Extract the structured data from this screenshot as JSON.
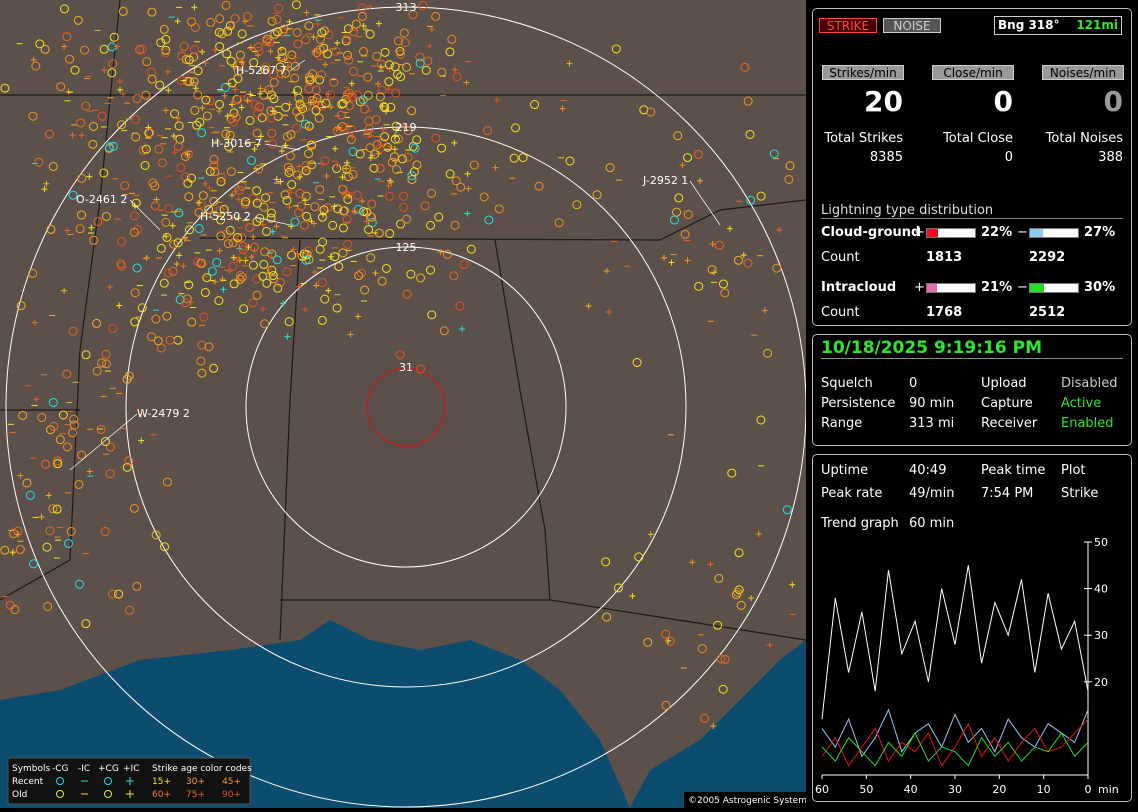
{
  "map": {
    "range_rings": [
      "313",
      "219",
      "125",
      "31"
    ],
    "storms": [
      "H-5267 7",
      "H-3016 7",
      "H-5250 2",
      "O-2461 2",
      "J-2952 1",
      "W-2479 2"
    ],
    "legend": {
      "header": [
        "Symbols",
        "-CG",
        "-IC",
        "+CG",
        "+IC",
        "Strike age color codes"
      ],
      "rows": [
        "Recent",
        "Old"
      ],
      "recent_ages": [
        "15+",
        "30+",
        "45+"
      ],
      "old_ages": [
        "60+",
        "75+",
        "90+"
      ]
    },
    "copyright": "©2005 Astrogenic Systems"
  },
  "panel": {
    "buttons": [
      "STRIKE",
      "NOISE"
    ],
    "bearing": "Bng 318°",
    "bearing_distance": "121mi",
    "rate_labels": [
      "Strikes/min",
      "Close/min",
      "Noises/min"
    ],
    "rates": [
      20,
      0,
      0
    ],
    "total_labels": [
      "Total Strikes",
      "Total Close",
      "Total Noises"
    ],
    "totals": [
      8385,
      0,
      388
    ],
    "distribution": {
      "title": "Lightning type distribution",
      "count_label": "Count",
      "rows": [
        {
          "label": "Cloud-ground",
          "signs": [
            "+",
            "−"
          ],
          "values": [
            22,
            27
          ],
          "value_labels": [
            "22%",
            "27%"
          ],
          "colors": [
            "#e8101a",
            "#8ec8f0"
          ],
          "counts": [
            1813,
            2292
          ]
        },
        {
          "label": "Intracloud",
          "signs": [
            "+",
            "−"
          ],
          "values": [
            21,
            30
          ],
          "value_labels": [
            "21%",
            "30%"
          ],
          "colors": [
            "#e86aa8",
            "#22dd22"
          ],
          "counts": [
            1768,
            2512
          ]
        }
      ]
    }
  },
  "status": {
    "datetime": "10/18/2025 9:19:16 PM",
    "rows": [
      [
        "Squelch",
        0,
        "Upload",
        "Disabled"
      ],
      [
        "Persistence",
        "90 min",
        "Capture",
        "Active"
      ],
      [
        "Range",
        "313 mi",
        "Receiver",
        "Enabled"
      ]
    ]
  },
  "stats": {
    "rows": [
      [
        "Uptime",
        "40:49",
        "Peak time",
        "Plot"
      ],
      [
        "Peak rate",
        "49/min",
        "7:54 PM",
        "Strike"
      ]
    ],
    "trend_label": "Trend graph",
    "trend_span": "60 min"
  },
  "trend": {
    "type": "line",
    "x": [
      60,
      57,
      54,
      51,
      48,
      45,
      42,
      39,
      36,
      33,
      30,
      27,
      24,
      21,
      18,
      15,
      12,
      9,
      6,
      3,
      0
    ],
    "xlim": [
      60,
      0
    ],
    "ylim": [
      0,
      50
    ],
    "xticks": [
      60,
      50,
      40,
      30,
      20,
      10,
      0
    ],
    "yticks": [
      50,
      40,
      30,
      20
    ],
    "x_unit": "min",
    "series": [
      {
        "color": "#ffffff",
        "values": [
          12,
          38,
          22,
          35,
          18,
          44,
          26,
          33,
          20,
          40,
          28,
          45,
          24,
          37,
          30,
          42,
          22,
          39,
          27,
          33,
          18
        ]
      },
      {
        "color": "#8ec8f0",
        "values": [
          10,
          6,
          12,
          4,
          8,
          14,
          5,
          9,
          11,
          6,
          13,
          7,
          10,
          5,
          12,
          8,
          6,
          11,
          9,
          7,
          14
        ]
      },
      {
        "color": "#e8101a",
        "values": [
          4,
          8,
          2,
          6,
          10,
          3,
          7,
          5,
          9,
          2,
          6,
          11,
          4,
          8,
          3,
          7,
          10,
          5,
          6,
          9,
          12
        ]
      },
      {
        "color": "#22dd22",
        "values": [
          6,
          3,
          8,
          5,
          2,
          7,
          4,
          9,
          3,
          6,
          5,
          2,
          8,
          4,
          7,
          3,
          6,
          5,
          9,
          4,
          7
        ]
      }
    ]
  }
}
